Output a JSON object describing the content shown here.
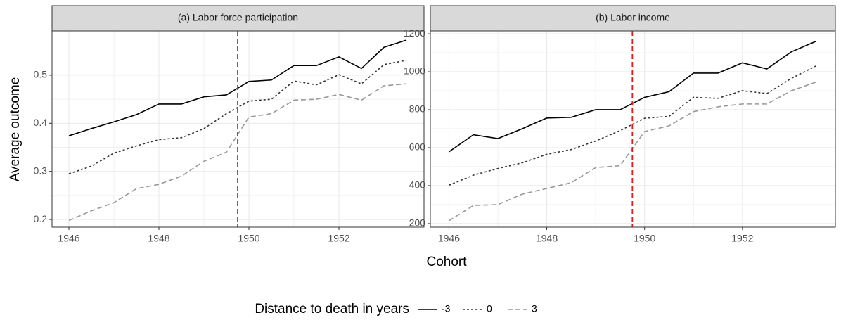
{
  "chart_data": [
    {
      "type": "line",
      "title": "(a) Labor force participation",
      "x": [
        1946,
        1946.5,
        1947,
        1947.5,
        1948,
        1948.5,
        1949,
        1949.5,
        1950,
        1950.5,
        1951,
        1951.5,
        1952,
        1952.5,
        1953,
        1953.5
      ],
      "series": [
        {
          "name": "-3",
          "color": "#000000",
          "linestyle": "solid",
          "values": [
            0.374,
            0.389,
            0.403,
            0.418,
            0.44,
            0.44,
            0.455,
            0.459,
            0.487,
            0.49,
            0.52,
            0.52,
            0.538,
            0.514,
            0.558,
            0.573
          ]
        },
        {
          "name": "0",
          "color": "#333333",
          "linestyle": "dotted",
          "values": [
            0.295,
            0.311,
            0.338,
            0.353,
            0.366,
            0.37,
            0.389,
            0.42,
            0.446,
            0.45,
            0.488,
            0.48,
            0.501,
            0.482,
            0.522,
            0.531
          ]
        },
        {
          "name": "3",
          "color": "#999999",
          "linestyle": "dashed",
          "values": [
            0.198,
            0.218,
            0.235,
            0.264,
            0.273,
            0.29,
            0.321,
            0.34,
            0.413,
            0.42,
            0.448,
            0.45,
            0.46,
            0.448,
            0.478,
            0.482
          ]
        }
      ],
      "xlim": [
        1945.625,
        1953.89
      ],
      "xticks": [
        1946,
        1948,
        1950,
        1952
      ],
      "ylim": [
        0.184,
        0.592
      ],
      "yticks": [
        0.2,
        0.3,
        0.4,
        0.5
      ],
      "vline": 1949.75,
      "vline_color": "#e41a1c",
      "grid": true
    },
    {
      "type": "line",
      "title": "(b) Labor income",
      "x": [
        1946,
        1946.5,
        1947,
        1947.5,
        1948,
        1948.5,
        1949,
        1949.5,
        1950,
        1950.5,
        1951,
        1951.5,
        1952,
        1952.5,
        1953,
        1953.5
      ],
      "series": [
        {
          "name": "-3",
          "color": "#000000",
          "linestyle": "solid",
          "values": [
            578,
            668,
            648,
            700,
            756,
            760,
            800,
            800,
            865,
            895,
            993,
            993,
            1047,
            1015,
            1105,
            1160
          ]
        },
        {
          "name": "0",
          "color": "#333333",
          "linestyle": "dotted",
          "values": [
            402,
            455,
            490,
            520,
            565,
            590,
            635,
            690,
            755,
            765,
            865,
            860,
            900,
            885,
            965,
            1030
          ]
        },
        {
          "name": "3",
          "color": "#999999",
          "linestyle": "dashed",
          "values": [
            215,
            295,
            300,
            355,
            385,
            415,
            495,
            505,
            685,
            715,
            790,
            815,
            830,
            830,
            900,
            945
          ]
        }
      ],
      "xlim": [
        1945.62,
        1953.9
      ],
      "xticks": [
        1946,
        1948,
        1950,
        1952
      ],
      "ylim": [
        181,
        1215
      ],
      "yticks": [
        200,
        400,
        600,
        800,
        1000,
        1200
      ],
      "vline": 1949.75,
      "vline_color": "#e41a1c",
      "grid": true
    }
  ],
  "xlabel": "Cohort",
  "ylabel": "Average outcome",
  "legend_title": "Distance to death in years",
  "legend_position": "bottom"
}
